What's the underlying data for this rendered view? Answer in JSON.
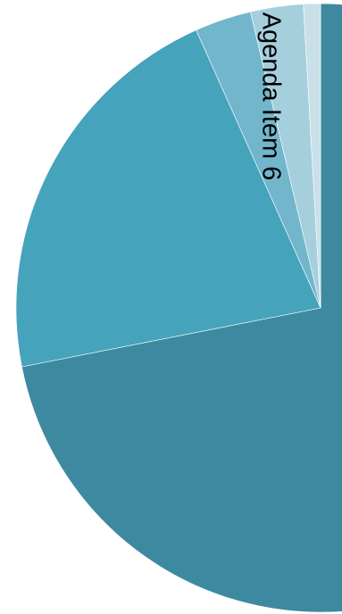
{
  "chart_data": {
    "type": "pie",
    "categories": [
      null,
      null,
      "Agenda Item 6",
      null,
      null
    ],
    "values": [
      71.9,
      21.4,
      3.0,
      2.8,
      0.9
    ],
    "colors": [
      "#3d8aa0",
      "#46a3bc",
      "#72b6cc",
      "#a6cfdd",
      "#c9e0e8"
    ]
  }
}
